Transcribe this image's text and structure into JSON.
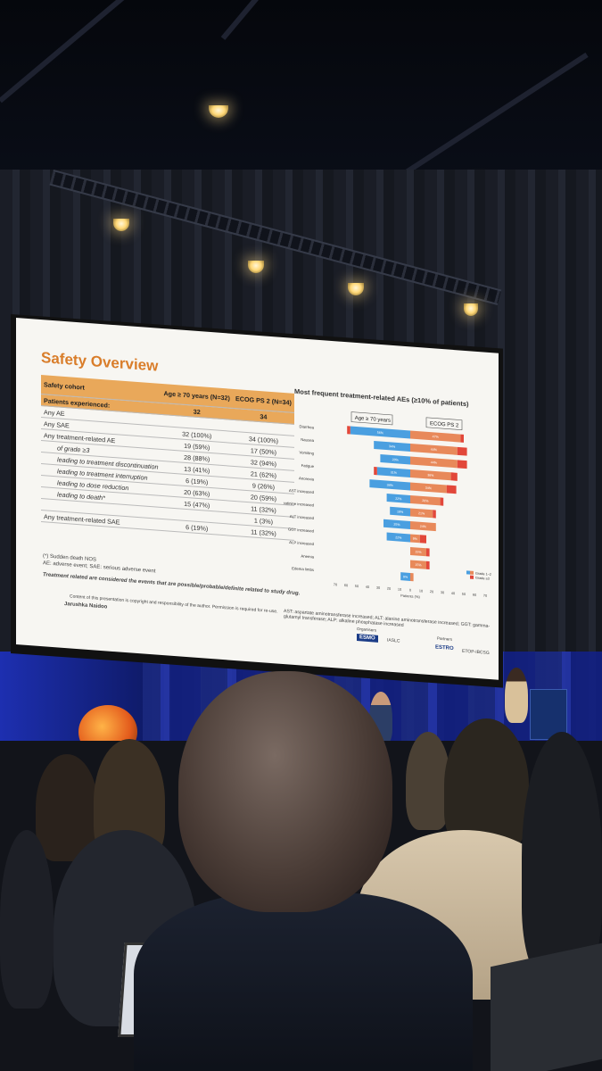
{
  "slide": {
    "title": "Safety Overview",
    "table": {
      "head": [
        "Safety cohort",
        "Age ≥ 70 years\n(N=32)",
        "ECOG PS 2\n(N=34)"
      ],
      "sub": [
        "Patients experienced:",
        "32",
        "34"
      ],
      "rows": [
        {
          "label": "Any AE",
          "a": "",
          "b": ""
        },
        {
          "label": "Any SAE",
          "a": "32 (100%)",
          "b": "34 (100%)"
        },
        {
          "label": "Any treatment-related AE",
          "a": "19 (59%)",
          "b": "17 (50%)"
        },
        {
          "label": "of grade ≥3",
          "a": "28 (88%)",
          "b": "32 (94%)",
          "ind": true
        },
        {
          "label": "leading to treatment discontinuation",
          "a": "13 (41%)",
          "b": "21 (62%)",
          "ind": true
        },
        {
          "label": "leading to treatment interruption",
          "a": "6 (19%)",
          "b": "9 (26%)",
          "ind": true
        },
        {
          "label": "leading to dose reduction",
          "a": "20 (63%)",
          "b": "20 (59%)",
          "ind": true
        },
        {
          "label": "leading to death*",
          "a": "15 (47%)",
          "b": "11 (32%)",
          "ind": true
        },
        {
          "label": "",
          "a": "",
          "b": "1 (3%)"
        },
        {
          "label": "Any treatment-related SAE",
          "a": "6 (19%)",
          "b": "11 (32%)"
        }
      ]
    },
    "footnote1": "(*) Sudden death NOS",
    "footnote2": "AE: adverse event; SAE: serious adverse event",
    "note": "Treatment related are considered the events that are possible/probable/definite related to study drug.",
    "copyright": "Content of this presentation is copyright and responsibility of the author. Permission is required for re-use.",
    "presenter": "Jarushka Naidoo",
    "chart_title": "Most frequent treatment-related AEs (≥10% of patients)",
    "abbrev": "AST: aspartate aminotransferase increased; ALT: alanine aminotransferase increased; GGT: gamma-glutamyl transferase; ALP: alkaline phosphatase increased",
    "organisers": "Organisers",
    "partners": "Partners",
    "logos": [
      "ESMO",
      "IASLC",
      "ESTRO",
      "ETOP-IBCSG"
    ]
  },
  "chart_data": {
    "type": "bar",
    "orientation": "horizontal-butterfly",
    "title": "Most frequent treatment-related AEs (≥10% of patients)",
    "xlabel": "Patients (%)",
    "xticks": [
      "70",
      "60",
      "50",
      "40",
      "30",
      "20",
      "10",
      "0",
      "10",
      "20",
      "30",
      "40",
      "50",
      "60",
      "70"
    ],
    "left_group": "Age ≥ 70 years",
    "right_group": "ECOG PS 2",
    "categories": [
      "Diarrhea",
      "Nausea",
      "Vomiting",
      "Fatigue",
      "Anorexia",
      "AST increased",
      "Creatinine increased",
      "ALT increased",
      "GGT increased",
      "ALP increased",
      "Anemia",
      "Edema limbs"
    ],
    "series": [
      {
        "name": "Grade 1–2",
        "side": "left",
        "values": [
          56,
          34,
          28,
          31,
          38,
          22,
          19,
          25,
          22,
          0,
          0,
          9
        ]
      },
      {
        "name": "Grade ≥3",
        "side": "left",
        "values": [
          3,
          0,
          0,
          3,
          0,
          0,
          0,
          0,
          0,
          0,
          0,
          0
        ]
      },
      {
        "name": "Grade 1–2",
        "side": "right",
        "values": [
          47,
          44,
          44,
          38,
          34,
          28,
          21,
          24,
          9,
          15,
          15,
          3
        ]
      },
      {
        "name": "Grade ≥3",
        "side": "right",
        "values": [
          3,
          9,
          9,
          6,
          9,
          3,
          3,
          0,
          6,
          3,
          3,
          0
        ]
      }
    ],
    "legend": [
      "Grade 1–2",
      "Grade ≥3"
    ],
    "colors": {
      "left": "#4a9fe0",
      "right": "#e8895a",
      "grade3": "#e2473a"
    }
  }
}
